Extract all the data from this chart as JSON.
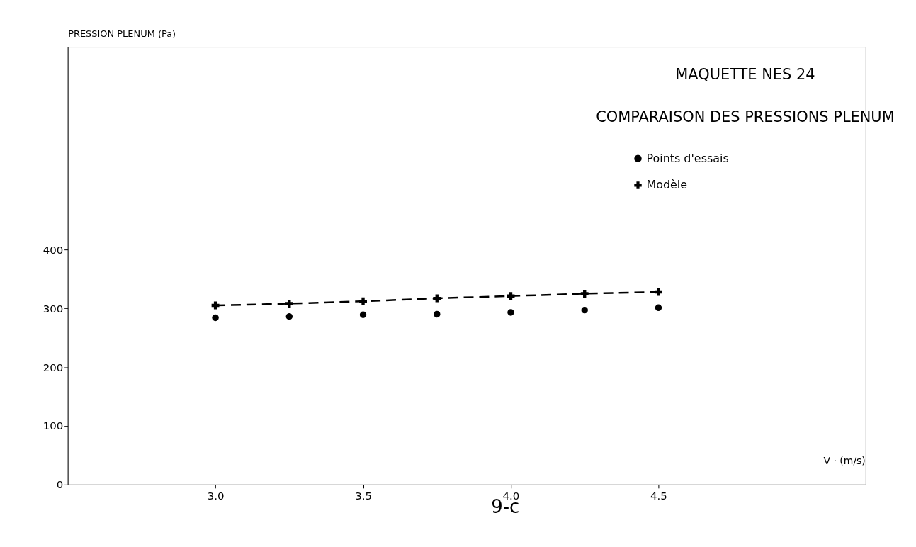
{
  "chart_data": {
    "type": "line",
    "title": "MAQUETTE NES 24",
    "subtitle": "COMPARAISON DES PRESSIONS PLENUM",
    "xlabel": "V · (m/s)",
    "ylabel": "PRESSION PLENUM (Pa)",
    "x": [
      3.0,
      3.25,
      3.5,
      3.75,
      4.0,
      4.25,
      4.5
    ],
    "series": [
      {
        "name": "Points d'essais",
        "type": "scatter",
        "marker": "circle",
        "color": "#000000",
        "values": [
          284,
          286,
          289,
          290,
          293,
          297,
          301
        ]
      },
      {
        "name": "Modèle",
        "marker": "cross",
        "line_style": "dashed",
        "color": "#000000",
        "values": [
          305,
          308,
          312,
          317,
          321,
          325,
          328
        ]
      }
    ],
    "xlim": [
      2.5,
      5.2
    ],
    "xticks": [
      {
        "value": 3.0,
        "label": "3.0"
      },
      3.5,
      {
        "value": 4.0,
        "label": "4.0"
      },
      4.5
    ],
    "ylim": [
      0,
      745
    ],
    "yticks": [
      0,
      100,
      200,
      300,
      400
    ],
    "grid": false,
    "legend": "top right",
    "annotations": [
      "9-c"
    ]
  }
}
